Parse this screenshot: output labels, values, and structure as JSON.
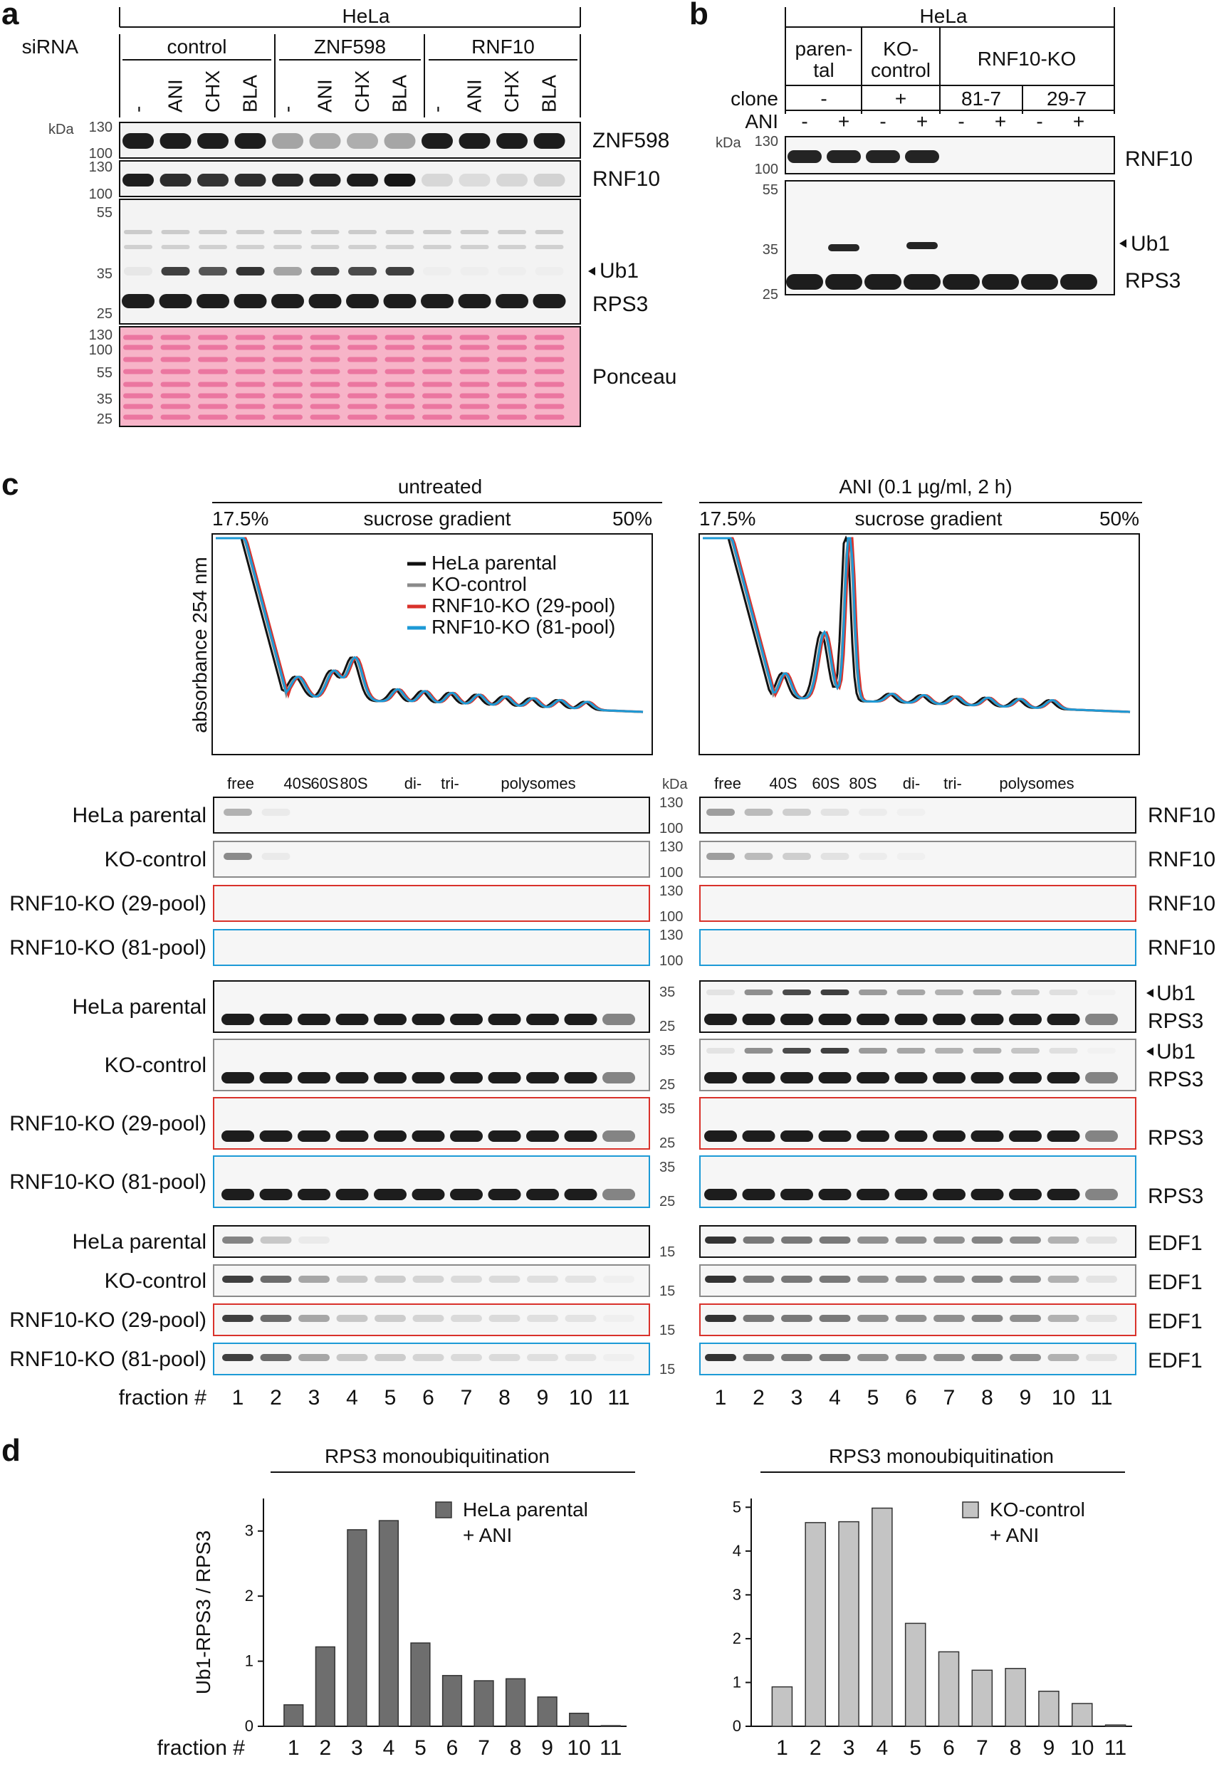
{
  "panel_a": {
    "letter": "a",
    "cell_line": "HeLa",
    "sirna_label": "siRNA",
    "groups": [
      "control",
      "ZNF598",
      "RNF10"
    ],
    "lanes": [
      "-",
      "ANI",
      "CHX",
      "BLA",
      "-",
      "ANI",
      "CHX",
      "BLA",
      "-",
      "ANI",
      "CHX",
      "BLA"
    ],
    "kda_label": "kDa",
    "blots": [
      {
        "name": "ZNF598",
        "ticks": [
          "130",
          "100"
        ]
      },
      {
        "name": "RNF10",
        "ticks": [
          "130",
          "100"
        ]
      },
      {
        "name": "RPS3",
        "ticks": [
          "55",
          "35",
          "25"
        ],
        "ub_label": "Ub1"
      },
      {
        "name": "Ponceau",
        "ticks": [
          "130",
          "100",
          "55",
          "35",
          "25"
        ]
      }
    ]
  },
  "panel_b": {
    "letter": "b",
    "cell_line": "HeLa",
    "groups": [
      "paren-",
      "tal",
      "KO-",
      "control",
      "RNF10-KO"
    ],
    "clone_label": "clone",
    "clones": [
      "-",
      "+",
      "81-7",
      "29-7"
    ],
    "ani_label": "ANI",
    "ani_signs": [
      "-",
      "+",
      "-",
      "+",
      "-",
      "+",
      "-",
      "+"
    ],
    "kda_label": "kDa",
    "blots": [
      {
        "name": "RNF10",
        "ticks": [
          "130",
          "100"
        ]
      },
      {
        "name": "RPS3",
        "ticks": [
          "55",
          "35",
          "25"
        ],
        "ub_label": "Ub1"
      }
    ]
  },
  "panel_c": {
    "letter": "c",
    "left_title": "untreated",
    "right_title": "ANI (0.1 µg/ml, 2 h)",
    "gradient_low": "17.5%",
    "gradient_label": "sucrose gradient",
    "gradient_high": "50%",
    "ylabel": "absorbance 254 nm",
    "legend": [
      "HeLa parental",
      "KO-control",
      "RNF10-KO (29-pool)",
      "RNF10-KO (81-pool)"
    ],
    "colors": {
      "parental": "#111111",
      "kocontrol": "#8a8a8a",
      "ko29": "#d9322b",
      "ko81": "#1d9ad6"
    },
    "peak_labels": [
      "free",
      "40S",
      "60S",
      "80S",
      "di-",
      "tri-",
      "polysomes"
    ],
    "kda_label": "kDa",
    "rnf10_rows": [
      "HeLa parental",
      "KO-control",
      "RNF10-KO (29-pool)",
      "RNF10-KO (81-pool)"
    ],
    "rnf10_name": "RNF10",
    "rnf10_ticks": [
      "130",
      "100"
    ],
    "rps3_rows": [
      "HeLa parental",
      "KO-control",
      "RNF10-KO (29-pool)",
      "RNF10-KO (81-pool)"
    ],
    "rps3_name": "RPS3",
    "rps3_ticks": [
      "35",
      "25"
    ],
    "ub_label": "Ub1",
    "edf1_rows": [
      "HeLa parental",
      "KO-control",
      "RNF10-KO (29-pool)",
      "RNF10-KO (81-pool)"
    ],
    "edf1_name": "EDF1",
    "edf1_tick": "15",
    "fraction_label": "fraction #",
    "fractions": [
      "1",
      "2",
      "3",
      "4",
      "5",
      "6",
      "7",
      "8",
      "9",
      "10",
      "11"
    ]
  },
  "panel_d": {
    "letter": "d",
    "chart_data": [
      {
        "type": "bar",
        "title": "RPS3 monoubiquitination",
        "ylabel": "Ub1-RPS3 / RPS3",
        "xlabel": "fraction #",
        "categories": [
          "1",
          "2",
          "3",
          "4",
          "5",
          "6",
          "7",
          "8",
          "9",
          "10",
          "11"
        ],
        "series": [
          {
            "name": "HeLa parental + ANI",
            "values": [
              0.33,
              1.22,
              3.02,
              3.16,
              1.28,
              0.78,
              0.7,
              0.73,
              0.45,
              0.2,
              0.01
            ],
            "color": "#6e6e6e"
          }
        ],
        "ylim": [
          0,
          3.5
        ],
        "yticks": [
          "0",
          "1",
          "2",
          "3"
        ],
        "legend_lines": [
          "HeLa parental",
          "+ ANI"
        ]
      },
      {
        "type": "bar",
        "title": "RPS3 monoubiquitination",
        "ylabel": "",
        "xlabel": "",
        "categories": [
          "1",
          "2",
          "3",
          "4",
          "5",
          "6",
          "7",
          "8",
          "9",
          "10",
          "11"
        ],
        "series": [
          {
            "name": "KO-control + ANI",
            "values": [
              0.9,
              4.65,
              4.67,
              4.98,
              2.35,
              1.7,
              1.28,
              1.32,
              0.8,
              0.52,
              0.03
            ],
            "color": "#c4c4c4"
          }
        ],
        "ylim": [
          0,
          5.2
        ],
        "yticks": [
          "0",
          "1",
          "2",
          "3",
          "4",
          "5"
        ],
        "legend_lines": [
          "KO-control",
          "+ ANI"
        ]
      }
    ]
  }
}
